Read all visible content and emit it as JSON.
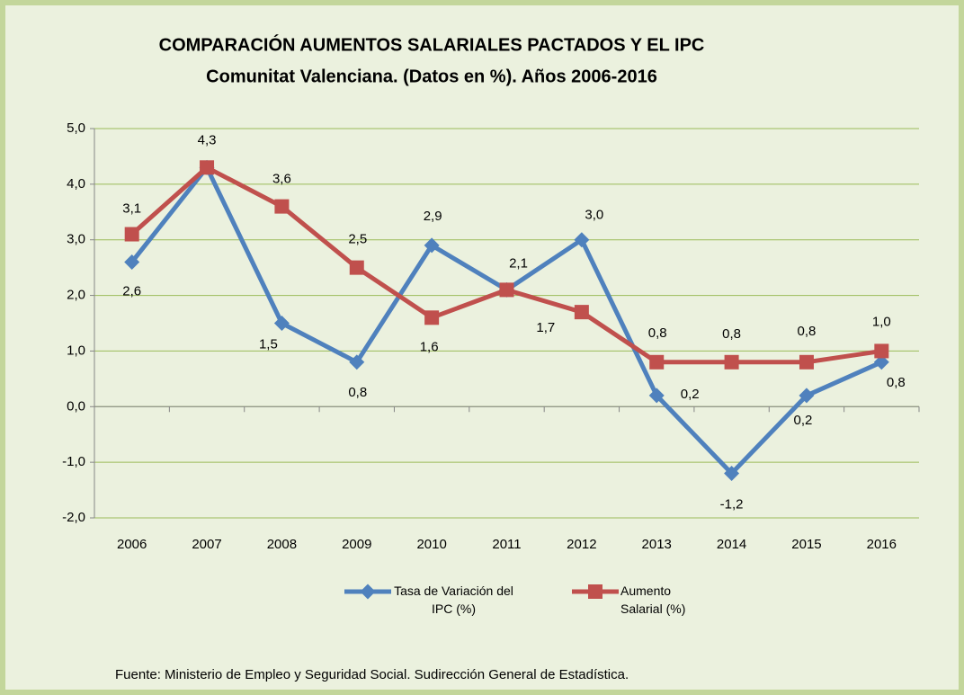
{
  "chart_data": {
    "type": "line",
    "title": "COMPARACIÓN AUMENTOS SALARIALES PACTADOS Y EL IPC",
    "subtitle": "Comunitat Valenciana. (Datos en %). Años 2006-2016",
    "source": "Fuente: Ministerio de Empleo y Seguridad Social. Sudirección General de Estadística.",
    "categories": [
      "2006",
      "2007",
      "2008",
      "2009",
      "2010",
      "2011",
      "2012",
      "2013",
      "2014",
      "2015",
      "2016"
    ],
    "series": [
      {
        "name": "Tasa de Variación del IPC (%)",
        "color": "#4f81bd",
        "values": [
          2.6,
          4.3,
          1.5,
          0.8,
          2.9,
          2.1,
          3.0,
          0.2,
          -1.2,
          0.2,
          0.8
        ],
        "value_labels": [
          "2,6",
          null,
          "1,5",
          "0,8",
          "2,9",
          "2,1",
          "3,0",
          "0,2",
          "-1,2",
          "0,2",
          "0,8"
        ]
      },
      {
        "name": "Aumento Salarial (%)",
        "color": "#c0504d",
        "values": [
          3.1,
          4.3,
          3.6,
          2.5,
          1.6,
          2.1,
          1.7,
          0.8,
          0.8,
          0.8,
          1.0
        ],
        "value_labels": [
          "3,1",
          "4,3",
          "3,6",
          "2,5",
          "1,6",
          null,
          "1,7",
          "0,8",
          "0,8",
          "0,8",
          "1,0"
        ]
      }
    ],
    "ylim": [
      -2,
      5
    ],
    "yticks": [
      {
        "value": -2,
        "label": "-2,0"
      },
      {
        "value": -1,
        "label": "-1,0"
      },
      {
        "value": 0,
        "label": "0,0"
      },
      {
        "value": 1,
        "label": "1,0"
      },
      {
        "value": 2,
        "label": "2,0"
      },
      {
        "value": 3,
        "label": "3,0"
      },
      {
        "value": 4,
        "label": "4,0"
      },
      {
        "value": 5,
        "label": "5,0"
      }
    ],
    "grid": true,
    "legend": "bottom"
  }
}
